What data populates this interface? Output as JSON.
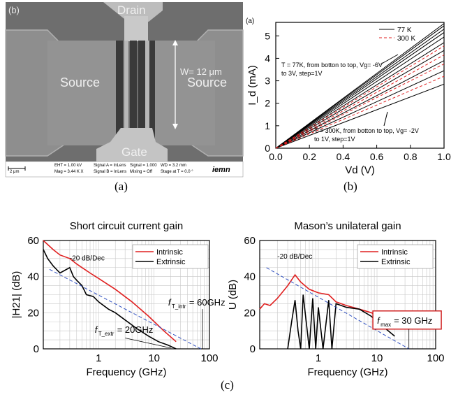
{
  "figure": {
    "caption_a": "(a)",
    "caption_b": "(b)",
    "caption_c": "(c)"
  },
  "sem": {
    "panel_label": "(b)",
    "drain": "Drain",
    "source_left": "Source",
    "source_right": "Source",
    "gate": "Gate",
    "width_label": "W= 12 μm",
    "scale_label": "2 μm",
    "info": {
      "eht": "EHT = 1.00 kV",
      "mag": "Mag = 3.44 K X",
      "signal_a": "Signal A = InLens",
      "signal_b": "Signal B = InLens",
      "signal": "Signal = 1.000",
      "mixing": "Mixing = Off",
      "wd": "WD = 3.2 mm",
      "stage": "Stage at T = 0.0 °",
      "logo": "iemn"
    }
  },
  "chart_data": [
    {
      "id": "iv",
      "type": "line",
      "panel_label": "(a)",
      "xlabel": "Vd (V)",
      "ylabel": "I_d (mA)",
      "xlim": [
        0,
        1
      ],
      "ylim": [
        0,
        5.6
      ],
      "xticks": [
        "0.0",
        "0.2",
        "0.4",
        "0.6",
        "0.8",
        "1.0"
      ],
      "yticks": [
        "0",
        "1",
        "2",
        "3",
        "4",
        "5"
      ],
      "legend": [
        "77 K",
        "300 K"
      ],
      "annotation_77k_line1": "T = 77K, from botton to top, Vg= -6V",
      "annotation_77k_line2": "to 3V, step=1V",
      "annotation_300k_line1": "T = 300K, from botton to top, Vg= -2V",
      "annotation_300k_line2": "to 1V, step=1V",
      "series": [
        {
          "name": "77 K",
          "color": "#000000",
          "dashed": false,
          "x": [
            0,
            1
          ],
          "y_end_values": [
            2.85,
            3.45,
            3.9,
            4.35,
            4.7,
            4.95,
            5.15,
            5.3,
            5.45,
            5.55
          ]
        },
        {
          "name": "300 K",
          "color": "#e02020",
          "dashed": true,
          "x": [
            0,
            1
          ],
          "y_end_values": [
            3.2,
            3.75,
            4.15,
            4.55
          ]
        }
      ]
    },
    {
      "id": "h21",
      "type": "line",
      "title": "Short circuit current gain",
      "xlabel": "Frequency (GHz)",
      "ylabel": "|H21| (dB)",
      "xscale": "log",
      "xlim": [
        0.1,
        100
      ],
      "ylim": [
        0,
        60
      ],
      "xticks": [
        "1",
        "10",
        "100"
      ],
      "yticks": [
        "0",
        "20",
        "40",
        "60"
      ],
      "slope_label": "-20 dB/Dec",
      "ft_intr_label": "= 60GHz",
      "ft_extr_label": "= 20GHz",
      "series": [
        {
          "name": "Intrinsic",
          "color": "#e02020",
          "x": [
            0.1,
            0.15,
            0.2,
            0.3,
            0.4,
            0.5,
            0.7,
            1,
            2,
            4,
            8,
            15,
            25
          ],
          "y": [
            60,
            55,
            52,
            50,
            47,
            45,
            42,
            39,
            33,
            26,
            18,
            10,
            4
          ]
        },
        {
          "name": "Extrinsic",
          "color": "#000000",
          "x": [
            0.1,
            0.12,
            0.15,
            0.2,
            0.3,
            0.35,
            0.4,
            0.5,
            0.6,
            0.8,
            1,
            1.5,
            2,
            3,
            5,
            8,
            12,
            18,
            25
          ],
          "y": [
            55,
            50,
            46,
            42,
            45,
            40,
            38,
            35,
            30,
            29,
            26,
            22,
            20,
            16,
            11,
            7,
            4,
            2,
            0
          ]
        },
        {
          "name": "slope",
          "color": "#3050c0",
          "dashed": true,
          "x": [
            0.13,
            70
          ],
          "y": [
            44,
            0
          ]
        }
      ]
    },
    {
      "id": "mason",
      "type": "line",
      "title": "Mason’s unilateral gain",
      "xlabel": "Frequency (GHz)",
      "ylabel": "U (dB)",
      "xscale": "log",
      "xlim": [
        0.1,
        100
      ],
      "ylim": [
        0,
        60
      ],
      "xticks": [
        "1",
        "10",
        "100"
      ],
      "yticks": [
        "0",
        "20",
        "40",
        "60"
      ],
      "slope_label": "-20 dB/Dec",
      "fmax_label": "= 30 GHz",
      "series": [
        {
          "name": "Intrinsic",
          "color": "#e02020",
          "x": [
            0.1,
            0.12,
            0.15,
            0.2,
            0.3,
            0.4,
            0.5,
            0.7,
            1,
            1.5,
            2,
            3,
            5,
            8,
            12,
            20
          ],
          "y": [
            22,
            25,
            24,
            28,
            35,
            41,
            37,
            33,
            31,
            30,
            26,
            24,
            22,
            20,
            17,
            12
          ]
        },
        {
          "name": "Extrinsic",
          "color": "#000000",
          "x": [
            0.3,
            0.35,
            0.4,
            0.45,
            0.5,
            0.55,
            0.7,
            0.8,
            0.9,
            1,
            1.2,
            1.5,
            1.7,
            2,
            3,
            5,
            8,
            12,
            20
          ],
          "y": [
            0,
            15,
            27,
            10,
            0,
            30,
            0,
            28,
            0,
            23,
            0,
            27,
            0,
            25,
            23,
            22,
            18,
            13,
            7
          ]
        },
        {
          "name": "slope",
          "color": "#3050c0",
          "dashed": true,
          "x": [
            0.13,
            35
          ],
          "y": [
            45,
            0
          ]
        }
      ]
    }
  ]
}
